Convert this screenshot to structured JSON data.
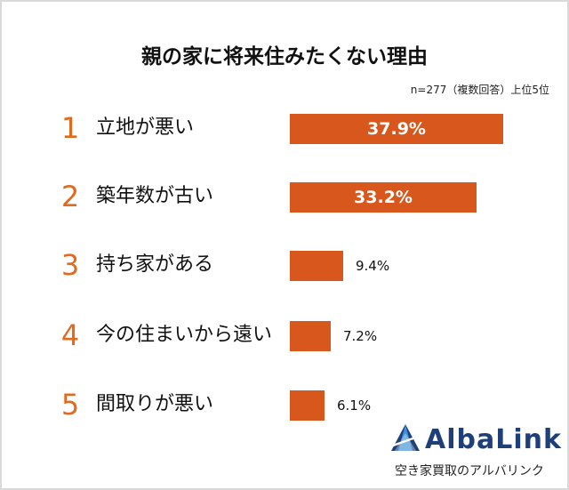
{
  "chart_data": {
    "type": "bar",
    "orientation": "horizontal",
    "title": "親の家に将来住みたくない理由",
    "note": "n=277（複数回答）上位5位",
    "xlim": [
      0,
      40
    ],
    "ranks": [
      "1",
      "2",
      "3",
      "4",
      "5"
    ],
    "categories": [
      "立地が悪い",
      "築年数が古い",
      "持ち家がある",
      "今の住まいから遠い",
      "間取りが悪い"
    ],
    "values": [
      37.9,
      33.2,
      9.4,
      7.2,
      6.1
    ],
    "value_labels": [
      "37.9%",
      "33.2%",
      "9.4%",
      "7.2%",
      "6.1%"
    ],
    "bar_color": "#d8571c",
    "rank_color": "#e06a1e"
  },
  "brand": {
    "name": "AlbaLink",
    "tagline": "空き家買取のアルバリンク",
    "color": "#1f3f78",
    "icon": "albalink-logo-icon"
  }
}
